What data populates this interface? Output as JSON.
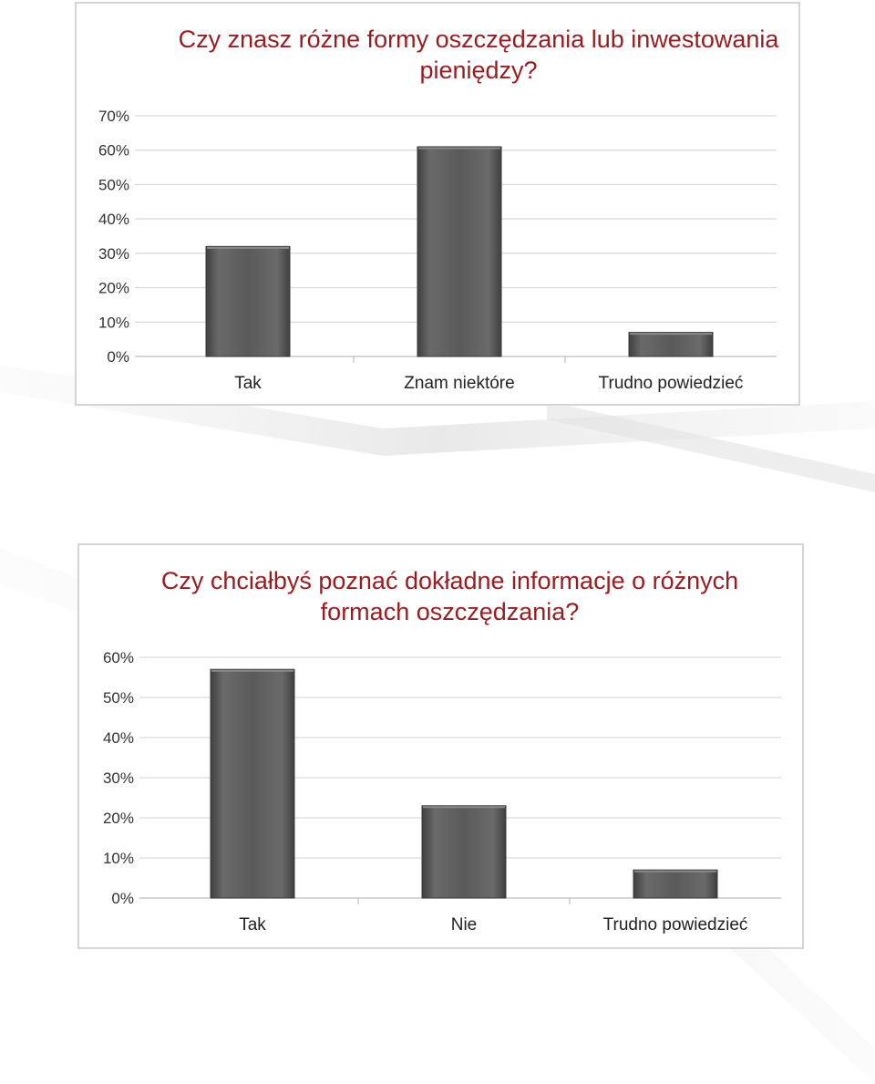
{
  "colors": {
    "title": "#9c1b1f",
    "bar": "#595959",
    "bar_edge": "#3a3a3a",
    "grid": "#d9d9d9",
    "frame": "#d4d4d4"
  },
  "chart_data": [
    {
      "type": "bar",
      "title": "Czy znasz różne formy oszczędzania lub inwestowania pieniędzy?",
      "categories": [
        "Tak",
        "Znam niektóre",
        "Trudno powiedzieć"
      ],
      "values": [
        32,
        61,
        7
      ],
      "ylim": [
        0,
        70
      ],
      "yticks": [
        "0%",
        "10%",
        "20%",
        "30%",
        "40%",
        "50%",
        "60%",
        "70%"
      ],
      "grid": true,
      "legend": "none"
    },
    {
      "type": "bar",
      "title": "Czy chciałbyś poznać dokładne informacje o różnych formach oszczędzania?",
      "categories": [
        "Tak",
        "Nie",
        "Trudno powiedzieć"
      ],
      "values": [
        57,
        23,
        7
      ],
      "ylim": [
        0,
        60
      ],
      "yticks": [
        "0%",
        "10%",
        "20%",
        "30%",
        "40%",
        "50%",
        "60%"
      ],
      "grid": true,
      "legend": "none"
    }
  ]
}
